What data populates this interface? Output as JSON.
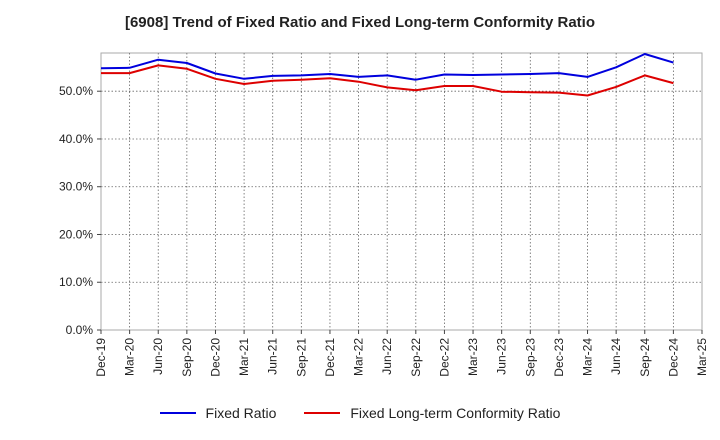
{
  "chart_data": {
    "type": "line",
    "title": "[6908]  Trend of Fixed Ratio and Fixed Long-term Conformity Ratio",
    "xlabel": "",
    "ylabel": "",
    "x": [
      "Dec-19",
      "Mar-20",
      "Jun-20",
      "Sep-20",
      "Dec-20",
      "Mar-21",
      "Jun-21",
      "Sep-21",
      "Dec-21",
      "Mar-22",
      "Jun-22",
      "Sep-22",
      "Dec-22",
      "Mar-23",
      "Jun-23",
      "Sep-23",
      "Dec-23",
      "Mar-24",
      "Jun-24",
      "Sep-24",
      "Dec-24"
    ],
    "x_ticks": [
      "Dec-19",
      "Mar-20",
      "Jun-20",
      "Sep-20",
      "Dec-20",
      "Mar-21",
      "Jun-21",
      "Sep-21",
      "Dec-21",
      "Mar-22",
      "Jun-22",
      "Sep-22",
      "Dec-22",
      "Mar-23",
      "Jun-23",
      "Sep-23",
      "Dec-23",
      "Mar-24",
      "Jun-24",
      "Sep-24",
      "Dec-24",
      "Mar-25"
    ],
    "y_ticks": [
      "0.0%",
      "10.0%",
      "20.0%",
      "30.0%",
      "40.0%",
      "50.0%"
    ],
    "ylim": [
      0,
      58
    ],
    "grid": true,
    "legend_position": "bottom",
    "series": [
      {
        "name": "Fixed Ratio",
        "color": "#0000dd",
        "values": [
          54.8,
          54.9,
          56.6,
          55.9,
          53.7,
          52.6,
          53.2,
          53.3,
          53.6,
          53.0,
          53.3,
          52.4,
          53.5,
          53.4,
          53.5,
          53.6,
          53.8,
          53.0,
          55.0,
          57.8,
          56.0
        ]
      },
      {
        "name": "Fixed Long-term Conformity Ratio",
        "color": "#dd0000",
        "values": [
          53.8,
          53.8,
          55.4,
          54.7,
          52.6,
          51.5,
          52.2,
          52.4,
          52.7,
          52.0,
          50.8,
          50.2,
          51.1,
          51.1,
          49.9,
          49.8,
          49.7,
          49.1,
          50.9,
          53.3,
          51.7
        ]
      }
    ]
  }
}
